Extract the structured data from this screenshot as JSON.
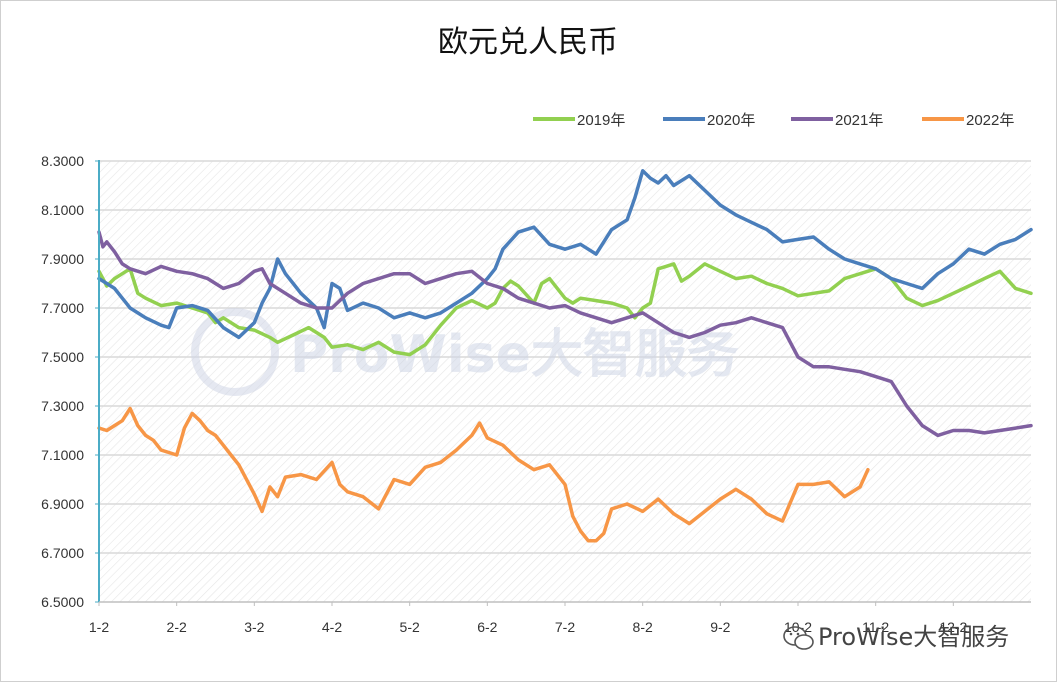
{
  "chart_data": {
    "type": "line",
    "title": "欧元兑人民币",
    "ylim": [
      6.5,
      8.3
    ],
    "y_ticks": [
      "6.5000",
      "6.7000",
      "6.9000",
      "7.1000",
      "7.3000",
      "7.5000",
      "7.7000",
      "7.9000",
      "8.1000",
      "8.3000"
    ],
    "x_ticks": [
      "1-2",
      "2-2",
      "3-2",
      "4-2",
      "5-2",
      "6-2",
      "7-2",
      "8-2",
      "9-2",
      "10-2",
      "11-2",
      "12-2"
    ],
    "x_unit": "month (1 = Jan 2, 13 = end of Dec)",
    "grid": true,
    "legend_position": "top-right",
    "series": [
      {
        "name": "2019年",
        "color": "#92d050",
        "x": [
          1,
          1.1,
          1.2,
          1.3,
          1.4,
          1.5,
          1.6,
          1.8,
          2,
          2.2,
          2.4,
          2.5,
          2.6,
          2.8,
          3,
          3.2,
          3.3,
          3.5,
          3.7,
          3.9,
          4,
          4.2,
          4.4,
          4.6,
          4.8,
          5,
          5.2,
          5.4,
          5.6,
          5.8,
          6,
          6.1,
          6.2,
          6.3,
          6.4,
          6.6,
          6.7,
          6.8,
          7,
          7.1,
          7.2,
          7.4,
          7.6,
          7.8,
          7.9,
          8,
          8.1,
          8.2,
          8.3,
          8.4,
          8.5,
          8.6,
          8.8,
          9,
          9.2,
          9.4,
          9.6,
          9.8,
          10,
          10.2,
          10.4,
          10.6,
          10.8,
          11,
          11.2,
          11.4,
          11.6,
          11.8,
          12,
          12.2,
          12.4,
          12.6,
          12.8,
          13
        ],
        "values": [
          7.85,
          7.79,
          7.82,
          7.84,
          7.86,
          7.76,
          7.74,
          7.71,
          7.72,
          7.7,
          7.68,
          7.64,
          7.66,
          7.62,
          7.61,
          7.58,
          7.56,
          7.59,
          7.62,
          7.58,
          7.54,
          7.55,
          7.53,
          7.56,
          7.52,
          7.51,
          7.55,
          7.63,
          7.7,
          7.73,
          7.7,
          7.72,
          7.78,
          7.81,
          7.79,
          7.72,
          7.8,
          7.82,
          7.74,
          7.72,
          7.74,
          7.73,
          7.72,
          7.7,
          7.66,
          7.7,
          7.72,
          7.86,
          7.87,
          7.88,
          7.81,
          7.83,
          7.88,
          7.85,
          7.82,
          7.83,
          7.8,
          7.78,
          7.75,
          7.76,
          7.77,
          7.82,
          7.84,
          7.86,
          7.82,
          7.74,
          7.71,
          7.73,
          7.76,
          7.79,
          7.82,
          7.85,
          7.78,
          7.76
        ]
      },
      {
        "name": "2020年",
        "color": "#4a7ebb",
        "x": [
          1,
          1.1,
          1.2,
          1.3,
          1.4,
          1.5,
          1.6,
          1.8,
          1.9,
          2,
          2.2,
          2.4,
          2.6,
          2.8,
          3,
          3.1,
          3.2,
          3.3,
          3.4,
          3.5,
          3.6,
          3.8,
          3.9,
          4,
          4.1,
          4.2,
          4.4,
          4.6,
          4.8,
          5,
          5.2,
          5.4,
          5.6,
          5.8,
          6,
          6.1,
          6.2,
          6.4,
          6.6,
          6.8,
          7,
          7.2,
          7.4,
          7.6,
          7.8,
          7.9,
          8,
          8.1,
          8.2,
          8.3,
          8.4,
          8.6,
          8.8,
          9,
          9.2,
          9.4,
          9.6,
          9.8,
          10,
          10.2,
          10.4,
          10.6,
          10.8,
          11,
          11.2,
          11.4,
          11.6,
          11.8,
          12,
          12.2,
          12.4,
          12.6,
          12.8,
          13
        ],
        "values": [
          7.82,
          7.8,
          7.78,
          7.74,
          7.7,
          7.68,
          7.66,
          7.63,
          7.62,
          7.7,
          7.71,
          7.69,
          7.62,
          7.58,
          7.64,
          7.72,
          7.78,
          7.9,
          7.84,
          7.8,
          7.76,
          7.7,
          7.62,
          7.8,
          7.78,
          7.69,
          7.72,
          7.7,
          7.66,
          7.68,
          7.66,
          7.68,
          7.72,
          7.76,
          7.82,
          7.86,
          7.94,
          8.01,
          8.03,
          7.96,
          7.94,
          7.96,
          7.92,
          8.02,
          8.06,
          8.15,
          8.26,
          8.23,
          8.21,
          8.24,
          8.2,
          8.24,
          8.18,
          8.12,
          8.08,
          8.05,
          8.02,
          7.97,
          7.98,
          7.99,
          7.94,
          7.9,
          7.88,
          7.86,
          7.82,
          7.8,
          7.78,
          7.84,
          7.88,
          7.94,
          7.92,
          7.96,
          7.98,
          8.02
        ]
      },
      {
        "name": "2021年",
        "color": "#7f60a0",
        "x": [
          1,
          1.05,
          1.1,
          1.2,
          1.3,
          1.4,
          1.6,
          1.8,
          2,
          2.2,
          2.4,
          2.6,
          2.8,
          3,
          3.1,
          3.2,
          3.4,
          3.6,
          3.8,
          4,
          4.2,
          4.4,
          4.6,
          4.8,
          5,
          5.2,
          5.4,
          5.6,
          5.8,
          6,
          6.2,
          6.4,
          6.6,
          6.8,
          7,
          7.2,
          7.4,
          7.6,
          7.8,
          8,
          8.2,
          8.4,
          8.6,
          8.8,
          9,
          9.2,
          9.4,
          9.6,
          9.8,
          10,
          10.2,
          10.4,
          10.6,
          10.8,
          11,
          11.2,
          11.4,
          11.6,
          11.8,
          12,
          12.2,
          12.4,
          12.6,
          12.8,
          13
        ],
        "values": [
          8.01,
          7.95,
          7.97,
          7.93,
          7.88,
          7.86,
          7.84,
          7.87,
          7.85,
          7.84,
          7.82,
          7.78,
          7.8,
          7.85,
          7.86,
          7.8,
          7.76,
          7.72,
          7.7,
          7.7,
          7.76,
          7.8,
          7.82,
          7.84,
          7.84,
          7.8,
          7.82,
          7.84,
          7.85,
          7.8,
          7.78,
          7.74,
          7.72,
          7.7,
          7.71,
          7.68,
          7.66,
          7.64,
          7.66,
          7.68,
          7.64,
          7.6,
          7.58,
          7.6,
          7.63,
          7.64,
          7.66,
          7.64,
          7.62,
          7.5,
          7.46,
          7.46,
          7.45,
          7.44,
          7.42,
          7.4,
          7.3,
          7.22,
          7.18,
          7.2,
          7.2,
          7.19,
          7.2,
          7.21,
          7.22
        ]
      },
      {
        "name": "2022年",
        "color": "#f79646",
        "x": [
          1,
          1.1,
          1.2,
          1.3,
          1.4,
          1.5,
          1.6,
          1.7,
          1.8,
          1.9,
          2,
          2.1,
          2.2,
          2.3,
          2.4,
          2.5,
          2.6,
          2.7,
          2.8,
          3,
          3.1,
          3.2,
          3.3,
          3.4,
          3.6,
          3.8,
          4,
          4.1,
          4.2,
          4.4,
          4.6,
          4.8,
          5,
          5.2,
          5.4,
          5.6,
          5.8,
          5.9,
          6,
          6.2,
          6.4,
          6.6,
          6.8,
          7,
          7.1,
          7.2,
          7.3,
          7.4,
          7.5,
          7.6,
          7.8,
          8,
          8.2,
          8.4,
          8.6,
          8.8,
          9,
          9.2,
          9.4,
          9.6,
          9.8,
          10,
          10.2,
          10.4,
          10.6,
          10.8,
          10.9
        ],
        "values": [
          7.21,
          7.2,
          7.22,
          7.24,
          7.29,
          7.22,
          7.18,
          7.16,
          7.12,
          7.11,
          7.1,
          7.21,
          7.27,
          7.24,
          7.2,
          7.18,
          7.14,
          7.1,
          7.06,
          6.94,
          6.87,
          6.97,
          6.93,
          7.01,
          7.02,
          7.0,
          7.07,
          6.98,
          6.95,
          6.93,
          6.88,
          7.0,
          6.98,
          7.05,
          7.07,
          7.12,
          7.18,
          7.23,
          7.17,
          7.14,
          7.08,
          7.04,
          7.06,
          6.98,
          6.85,
          6.79,
          6.75,
          6.75,
          6.78,
          6.88,
          6.9,
          6.87,
          6.92,
          6.86,
          6.82,
          6.87,
          6.92,
          6.96,
          6.92,
          6.86,
          6.83,
          6.98,
          6.98,
          6.99,
          6.93,
          6.97,
          7.04
        ]
      }
    ]
  },
  "watermark": {
    "logo_text": "ProWise大智服务",
    "corner_text": "ProWise大智服务"
  },
  "colors": {
    "axis": "#4bacc6",
    "grid": "#d9d9d9"
  }
}
